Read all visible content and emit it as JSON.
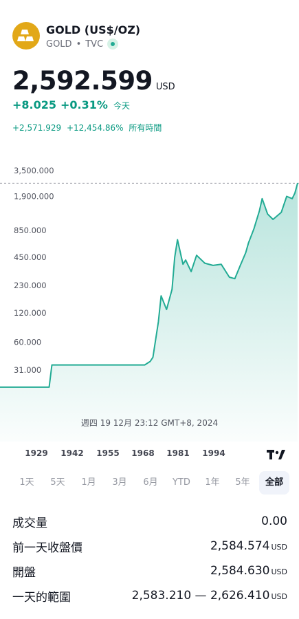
{
  "header": {
    "title": "GOLD (US$/OZ)",
    "symbol": "GOLD",
    "exchange": "TVC",
    "logo_icon": "gold-bars-icon",
    "status_icon": "market-live-dot-icon"
  },
  "quote": {
    "price": "2,592.599",
    "currency": "USD",
    "change_abs": "+8.025",
    "change_pct": "+0.31%",
    "change_period": "今天",
    "all_time_abs": "+2,571.929",
    "all_time_pct": "+12,454.86%",
    "all_time_period": "所有時間"
  },
  "chart_data": {
    "type": "area",
    "yscale": "log",
    "y_tick_labels": [
      "3,500.000",
      "1,900.000",
      "850.000",
      "450.000",
      "230.000",
      "120.000",
      "60.000",
      "31.000"
    ],
    "y_ticks": [
      3500,
      1900,
      850,
      450,
      230,
      120,
      60,
      31
    ],
    "x_tick_labels": [
      "1929",
      "1942",
      "1955",
      "1968",
      "1981",
      "1994"
    ],
    "x": [
      1915,
      1933,
      1934,
      1950,
      1951,
      1968,
      1970,
      1971,
      1973,
      1974,
      1976,
      1978,
      1979,
      1980,
      1982,
      1983,
      1985,
      1987,
      1990,
      1993,
      1996,
      1999,
      2001,
      2003,
      2005,
      2006,
      2008,
      2010,
      2011,
      2013,
      2015,
      2018,
      2020,
      2022,
      2023,
      2024
    ],
    "y": [
      20.67,
      20.67,
      35,
      35,
      35,
      35,
      38,
      42,
      97,
      180,
      130,
      210,
      450,
      680,
      380,
      420,
      320,
      470,
      390,
      370,
      380,
      280,
      270,
      370,
      500,
      630,
      880,
      1350,
      1800,
      1250,
      1100,
      1300,
      1900,
      1800,
      2050,
      2600
    ],
    "last_value": 2592.599,
    "line_color": "#22ab94",
    "grid": false
  },
  "crosshair": {
    "datetime": "週四 19 12月 23:12 GMT+8, 2024"
  },
  "ranges": [
    {
      "label": "1天"
    },
    {
      "label": "5天"
    },
    {
      "label": "1月"
    },
    {
      "label": "3月"
    },
    {
      "label": "6月"
    },
    {
      "label": "YTD"
    },
    {
      "label": "1年"
    },
    {
      "label": "5年"
    },
    {
      "label": "全部"
    }
  ],
  "active_range": "全部",
  "branding_icon": "tradingview-logo-icon",
  "stats": [
    {
      "label": "成交量",
      "value": "0.00",
      "unit": ""
    },
    {
      "label": "前一天收盤價",
      "value": "2,584.574",
      "unit": "USD"
    },
    {
      "label": "開盤",
      "value": "2,584.630",
      "unit": "USD"
    },
    {
      "label": "一天的範圍",
      "value": "2,583.210 — 2,626.410",
      "unit": "USD"
    }
  ]
}
